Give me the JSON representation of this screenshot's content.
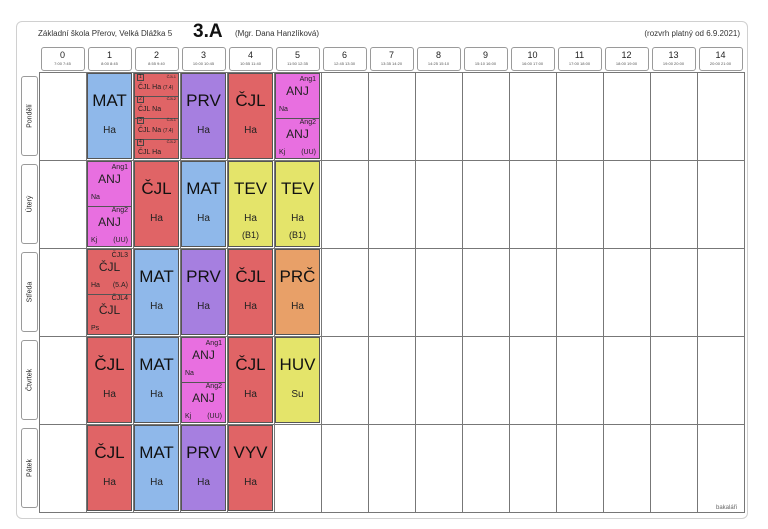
{
  "header": {
    "school": "Základní škola Přerov, Velká Dlážka 5",
    "class_name": "3.A",
    "teacher": "(Mgr. Dana Hanzlíková)",
    "valid_from": "(rozvrh platný od 6.9.2021)"
  },
  "periods": [
    {
      "num": "0",
      "time": "7:00 7:45"
    },
    {
      "num": "1",
      "time": "8:00 8:45"
    },
    {
      "num": "2",
      "time": "8:55 9:40"
    },
    {
      "num": "3",
      "time": "10:00 10:45"
    },
    {
      "num": "4",
      "time": "10:55 11:40"
    },
    {
      "num": "5",
      "time": "11:50 12:35"
    },
    {
      "num": "6",
      "time": "12:45 13:30"
    },
    {
      "num": "7",
      "time": "13:35 14:20"
    },
    {
      "num": "8",
      "time": "14:25 15:10"
    },
    {
      "num": "9",
      "time": "15:10 16:00"
    },
    {
      "num": "10",
      "time": "16:00 17:00"
    },
    {
      "num": "11",
      "time": "17:00 18:00"
    },
    {
      "num": "12",
      "time": "18:00 19:00"
    },
    {
      "num": "13",
      "time": "19:00 20:00"
    },
    {
      "num": "14",
      "time": "20:00 21:00"
    }
  ],
  "days": [
    "Pondělí",
    "Úterý",
    "Středa",
    "Čtvrtek",
    "Pátek"
  ],
  "lessons": {
    "mon": {
      "p1": {
        "subject": "MAT",
        "teacher": "Ha"
      },
      "p2": [
        {
          "g": "1",
          "subject": "ČJL",
          "teacher": "Ha",
          "group": "ČJL1",
          "room": "(7.4)"
        },
        {
          "g": "2",
          "subject": "ČJL",
          "teacher": "Na",
          "group": "ČJL2",
          "room": ""
        },
        {
          "g": "3",
          "subject": "ČJL",
          "teacher": "Na",
          "group": "ČJL1",
          "room": "(7.4)"
        },
        {
          "g": "4",
          "subject": "ČJL",
          "teacher": "Ha",
          "group": "ČJL2",
          "room": ""
        }
      ],
      "p3": {
        "subject": "PRV",
        "teacher": "Ha"
      },
      "p4": {
        "subject": "ČJL",
        "teacher": "Ha"
      },
      "p5": [
        {
          "group": "Ang1",
          "subject": "ANJ",
          "teacher": "Na",
          "room": ""
        },
        {
          "group": "Ang2",
          "subject": "ANJ",
          "teacher": "Kj",
          "room": "(UU)"
        }
      ]
    },
    "tue": {
      "p1": [
        {
          "group": "Ang1",
          "subject": "ANJ",
          "teacher": "Na",
          "room": ""
        },
        {
          "group": "Ang2",
          "subject": "ANJ",
          "teacher": "Kj",
          "room": "(UU)"
        }
      ],
      "p2": {
        "subject": "ČJL",
        "teacher": "Ha"
      },
      "p3": {
        "subject": "MAT",
        "teacher": "Ha"
      },
      "p4": {
        "subject": "TEV",
        "teacher": "Ha",
        "room": "(B1)"
      },
      "p5": {
        "subject": "TEV",
        "teacher": "Ha",
        "room": "(B1)"
      }
    },
    "wed": {
      "p1": [
        {
          "group": "ČJL3",
          "subject": "ČJL",
          "teacher": "Ha",
          "room": "(5.A)"
        },
        {
          "group": "ČJL4",
          "subject": "ČJL",
          "teacher": "Ps",
          "room": ""
        }
      ],
      "p2": {
        "subject": "MAT",
        "teacher": "Ha"
      },
      "p3": {
        "subject": "PRV",
        "teacher": "Ha"
      },
      "p4": {
        "subject": "ČJL",
        "teacher": "Ha"
      },
      "p5": {
        "subject": "PRČ",
        "teacher": "Ha"
      }
    },
    "thu": {
      "p1": {
        "subject": "ČJL",
        "teacher": "Ha"
      },
      "p2": {
        "subject": "MAT",
        "teacher": "Ha"
      },
      "p3": [
        {
          "group": "Ang1",
          "subject": "ANJ",
          "teacher": "Na",
          "room": ""
        },
        {
          "group": "Ang2",
          "subject": "ANJ",
          "teacher": "Kj",
          "room": "(UU)"
        }
      ],
      "p4": {
        "subject": "ČJL",
        "teacher": "Ha"
      },
      "p5": {
        "subject": "HUV",
        "teacher": "Su"
      }
    },
    "fri": {
      "p1": {
        "subject": "ČJL",
        "teacher": "Ha"
      },
      "p2": {
        "subject": "MAT",
        "teacher": "Ha"
      },
      "p3": {
        "subject": "PRV",
        "teacher": "Ha"
      },
      "p4": {
        "subject": "VYV",
        "teacher": "Ha"
      }
    }
  },
  "logo_text": "bakaláři"
}
